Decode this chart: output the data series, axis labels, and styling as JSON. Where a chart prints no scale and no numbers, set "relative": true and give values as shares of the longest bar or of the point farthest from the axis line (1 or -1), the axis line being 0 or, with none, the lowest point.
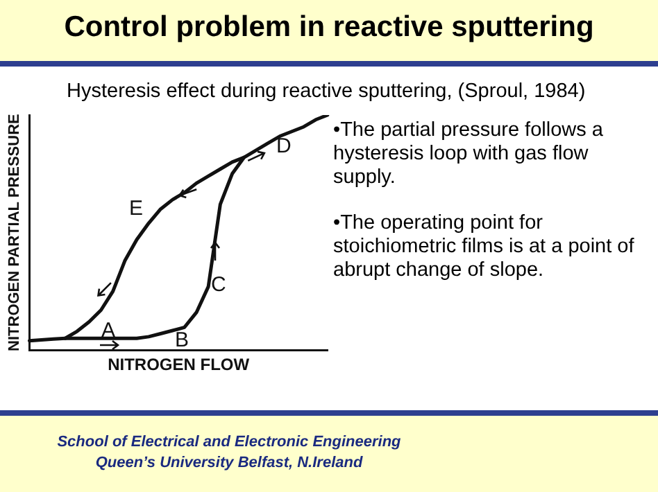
{
  "chart_data": {
    "type": "line",
    "title": "Control problem in reactive sputtering",
    "subtitle": "Hysteresis effect during reactive sputtering, (Sproul, 1984)",
    "xlabel": "NITROGEN FLOW",
    "ylabel": "NITROGEN PARTIAL PRESSURE",
    "relative": true,
    "marker": "none",
    "line_style": "solid",
    "grid": false,
    "legend": false,
    "categories": [
      null,
      null,
      null,
      null,
      null,
      null,
      null,
      null,
      null,
      null,
      null,
      null,
      null,
      null,
      null,
      null,
      null,
      null,
      null,
      null,
      null,
      null,
      null,
      null,
      null,
      null
    ],
    "series": [
      {
        "color": "#111111",
        "values": [
          0.04,
          0.043,
          0.047,
          0.05,
          0.05,
          0.05,
          0.05,
          0.05,
          0.05,
          0.05,
          0.057,
          0.07,
          0.083,
          0.097,
          0.16,
          0.27,
          0.62,
          0.75,
          0.82,
          0.85,
          0.88,
          0.91,
          0.93,
          0.95,
          0.98,
          1
        ]
      },
      {
        "color": "#111111",
        "values": [
          null,
          null,
          null,
          0.05,
          0.08,
          0.12,
          0.17,
          0.25,
          0.38,
          0.47,
          0.54,
          0.6,
          0.64,
          0.67,
          0.71,
          0.74,
          0.77,
          0.8,
          0.82,
          null,
          null,
          null,
          null,
          null,
          null,
          null
        ]
      }
    ],
    "annotations": [
      "•The partial pressure follows a hysteresis loop with gas flow supply.",
      "•The operating point for stoichiometric films is at a point of  abrupt change of slope.",
      "School of Electrical and Electronic Engineering",
      "Queen’s University Belfast, N.Ireland",
      "A",
      "B",
      "C",
      "D",
      "E"
    ]
  }
}
